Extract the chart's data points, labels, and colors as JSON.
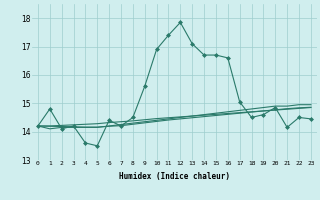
{
  "title": "",
  "xlabel": "Humidex (Indice chaleur)",
  "x_values": [
    0,
    1,
    2,
    3,
    4,
    5,
    6,
    7,
    8,
    9,
    10,
    11,
    12,
    13,
    14,
    15,
    16,
    17,
    18,
    19,
    20,
    21,
    22,
    23
  ],
  "line1_y": [
    14.2,
    14.8,
    14.1,
    14.2,
    13.6,
    13.5,
    14.4,
    14.2,
    14.5,
    15.6,
    16.9,
    17.4,
    17.85,
    17.1,
    16.7,
    16.7,
    16.6,
    15.05,
    14.5,
    14.6,
    14.85,
    14.15,
    14.5,
    14.45
  ],
  "line2_y": [
    14.2,
    14.1,
    14.15,
    14.15,
    14.15,
    14.15,
    14.2,
    14.25,
    14.3,
    14.35,
    14.4,
    14.45,
    14.5,
    14.55,
    14.6,
    14.65,
    14.7,
    14.75,
    14.8,
    14.85,
    14.9,
    14.9,
    14.95,
    14.95
  ],
  "line3_y": [
    14.2,
    14.2,
    14.22,
    14.24,
    14.26,
    14.28,
    14.32,
    14.35,
    14.38,
    14.42,
    14.46,
    14.49,
    14.52,
    14.55,
    14.58,
    14.61,
    14.64,
    14.67,
    14.7,
    14.73,
    14.76,
    14.79,
    14.82,
    14.85
  ],
  "line4_y": [
    14.2,
    14.19,
    14.18,
    14.17,
    14.16,
    14.16,
    14.19,
    14.21,
    14.26,
    14.31,
    14.36,
    14.41,
    14.45,
    14.49,
    14.53,
    14.57,
    14.61,
    14.65,
    14.69,
    14.73,
    14.77,
    14.81,
    14.84,
    14.86
  ],
  "line_color": "#2a7a6a",
  "bg_color": "#d0eeee",
  "grid_color": "#9ecece",
  "ylim": [
    13.0,
    18.5
  ],
  "yticks": [
    13,
    14,
    15,
    16,
    17,
    18
  ],
  "xticks": [
    0,
    1,
    2,
    3,
    4,
    5,
    6,
    7,
    8,
    9,
    10,
    11,
    12,
    13,
    14,
    15,
    16,
    17,
    18,
    19,
    20,
    21,
    22,
    23
  ]
}
